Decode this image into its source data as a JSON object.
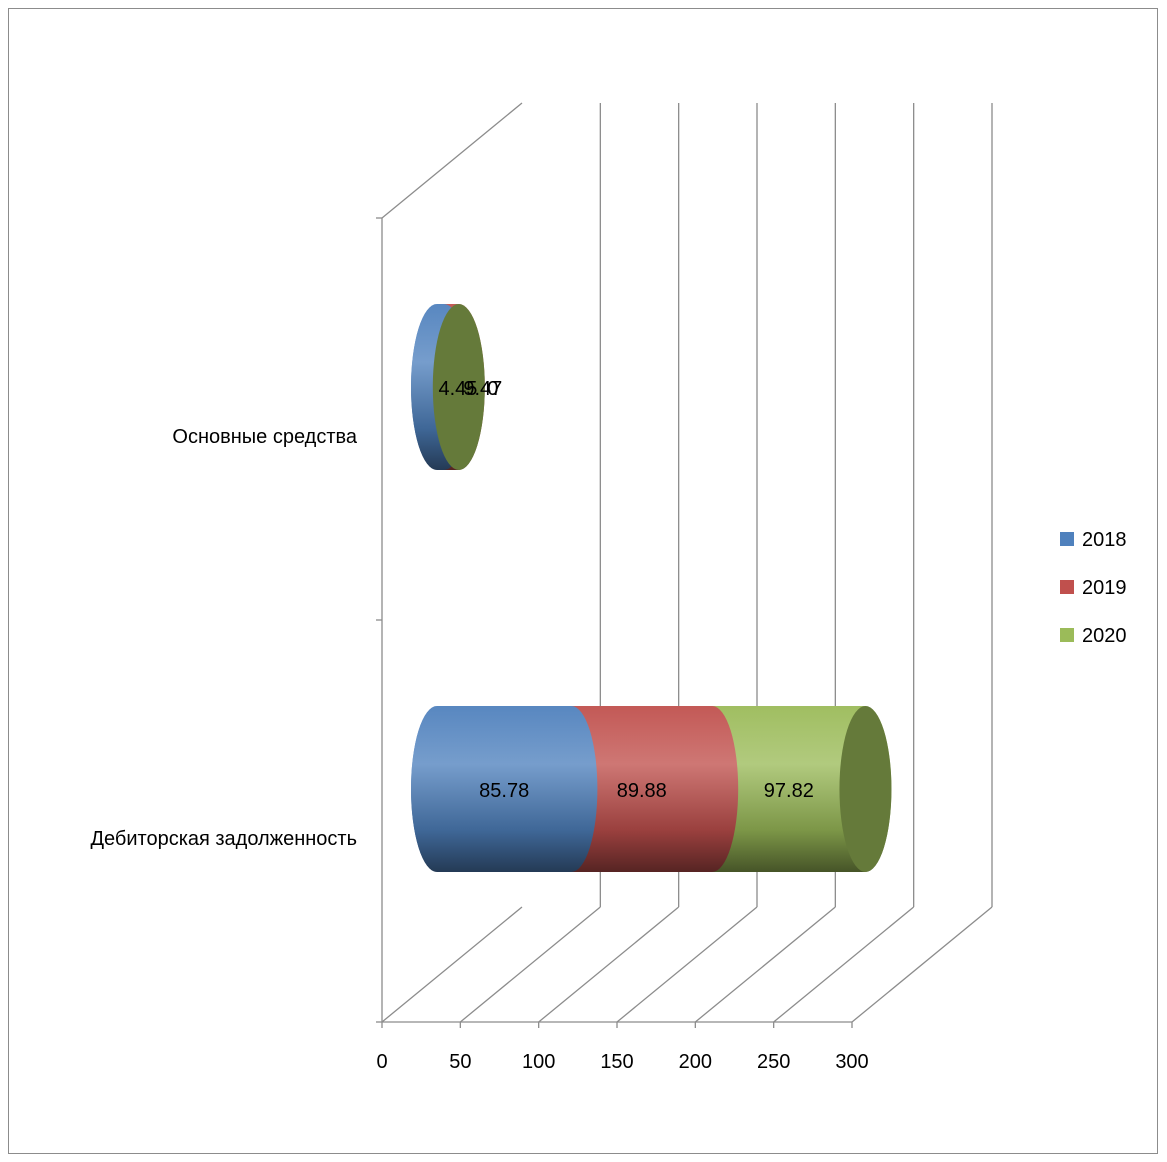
{
  "chart_data": {
    "type": "bar",
    "orientation": "horizontal",
    "style": "3d-cylinder-stacked",
    "title": "",
    "xlabel": "",
    "ylabel": "",
    "categories": [
      "Дебиторская задолженность",
      "Основные средства"
    ],
    "series": [
      {
        "name": "2018",
        "color": "#4f81bd",
        "values": [
          85.78,
          4.45
        ]
      },
      {
        "name": "2019",
        "color": "#c0504d",
        "values": [
          89.88,
          9.47
        ]
      },
      {
        "name": "2020",
        "color": "#9bbb59",
        "values": [
          97.82,
          0
        ]
      }
    ],
    "xlim": [
      0,
      300
    ],
    "x_ticks": [
      "0",
      "50",
      "100",
      "150",
      "200",
      "250",
      "300"
    ],
    "grid": true,
    "legend_position": "right"
  }
}
